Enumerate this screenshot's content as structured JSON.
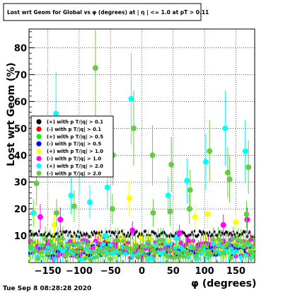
{
  "chart_data": {
    "type": "scatter",
    "title": "Lost wrt Geom for Global vs φ (degrees) at | η | <= 1.0 at pT > 0.11",
    "xlabel": "φ (degrees)",
    "ylabel": "Lost  wrt  Geom (%)",
    "xlim": [
      -180,
      180
    ],
    "ylim": [
      0,
      87
    ],
    "xticks": [
      -150,
      -100,
      -50,
      0,
      50,
      100,
      150
    ],
    "yticks": [
      10,
      20,
      30,
      40,
      50,
      60,
      70,
      80
    ],
    "grid": true,
    "legend_position": "middle-left",
    "timestamp": "Tue Sep  8 08:28:28 2020",
    "series": [
      {
        "name": "(+) with p T/|q| > 0.1",
        "color": "#000000",
        "baseline": 10.5,
        "spread": 1.2,
        "err": 0.7,
        "outliers": []
      },
      {
        "name": "(-) with p T/|q| > 0.1",
        "color": "#ff0000",
        "baseline": 6.0,
        "spread": 2.0,
        "err": 1.3,
        "outliers": []
      },
      {
        "name": "(+) with p T/|q| > 0.5",
        "color": "#00ff00",
        "baseline": 4.0,
        "spread": 2.2,
        "err": 1.5,
        "outliers": []
      },
      {
        "name": "(-) with p T/|q| > 0.5",
        "color": "#0000ff",
        "baseline": 4.5,
        "spread": 2.0,
        "err": 1.3,
        "outliers": []
      },
      {
        "name": "(+) with p T/|q| > 1.0",
        "color": "#ffff00",
        "baseline": 5.5,
        "spread": 4.0,
        "err": 2.5,
        "outliers": [
          [
            -172,
            18
          ],
          [
            -140,
            14
          ],
          [
            -20,
            24
          ],
          [
            85,
            17
          ],
          [
            105,
            18
          ],
          [
            150,
            15
          ]
        ]
      },
      {
        "name": "(-) with p T/|q| > 1.0",
        "color": "#ff00ff",
        "baseline": 5.0,
        "spread": 3.5,
        "err": 2.5,
        "outliers": [
          [
            -162,
            17
          ],
          [
            -130,
            16
          ],
          [
            -15,
            12
          ],
          [
            60,
            11
          ],
          [
            130,
            14
          ],
          [
            168,
            16
          ]
        ]
      },
      {
        "name": "(+) with p T/|q| > 2.0",
        "color": "#00ffff",
        "baseline": 4.0,
        "spread": 3.0,
        "err": 4.0,
        "outliers": [
          [
            -173,
            18.5
          ],
          [
            -137,
            55.5
          ],
          [
            -113,
            25
          ],
          [
            -83,
            22.5
          ],
          [
            -55,
            28
          ],
          [
            -17,
            61
          ],
          [
            42,
            25
          ],
          [
            72,
            30.5
          ],
          [
            102,
            37.5
          ],
          [
            133,
            50
          ],
          [
            165,
            41.5
          ],
          [
            -100,
            35
          ],
          [
            -58,
            10
          ],
          [
            55,
            9
          ]
        ]
      },
      {
        "name": "(-) with p T/|q| > 2.0",
        "color": "#66cc44",
        "baseline": 5.0,
        "spread": 4.0,
        "err": 4.5,
        "outliers": [
          [
            -168,
            29.5
          ],
          [
            -136,
            18.5
          ],
          [
            -108,
            21
          ],
          [
            -74,
            72.5
          ],
          [
            -46,
            40
          ],
          [
            -47,
            20
          ],
          [
            -13,
            50
          ],
          [
            18,
            18.5
          ],
          [
            17,
            40
          ],
          [
            47,
            36.5
          ],
          [
            45,
            19
          ],
          [
            77,
            27
          ],
          [
            76,
            20
          ],
          [
            108,
            41.5
          ],
          [
            137,
            33.5
          ],
          [
            140,
            31
          ],
          [
            170,
            35.5
          ],
          [
            167,
            18
          ]
        ]
      }
    ]
  }
}
